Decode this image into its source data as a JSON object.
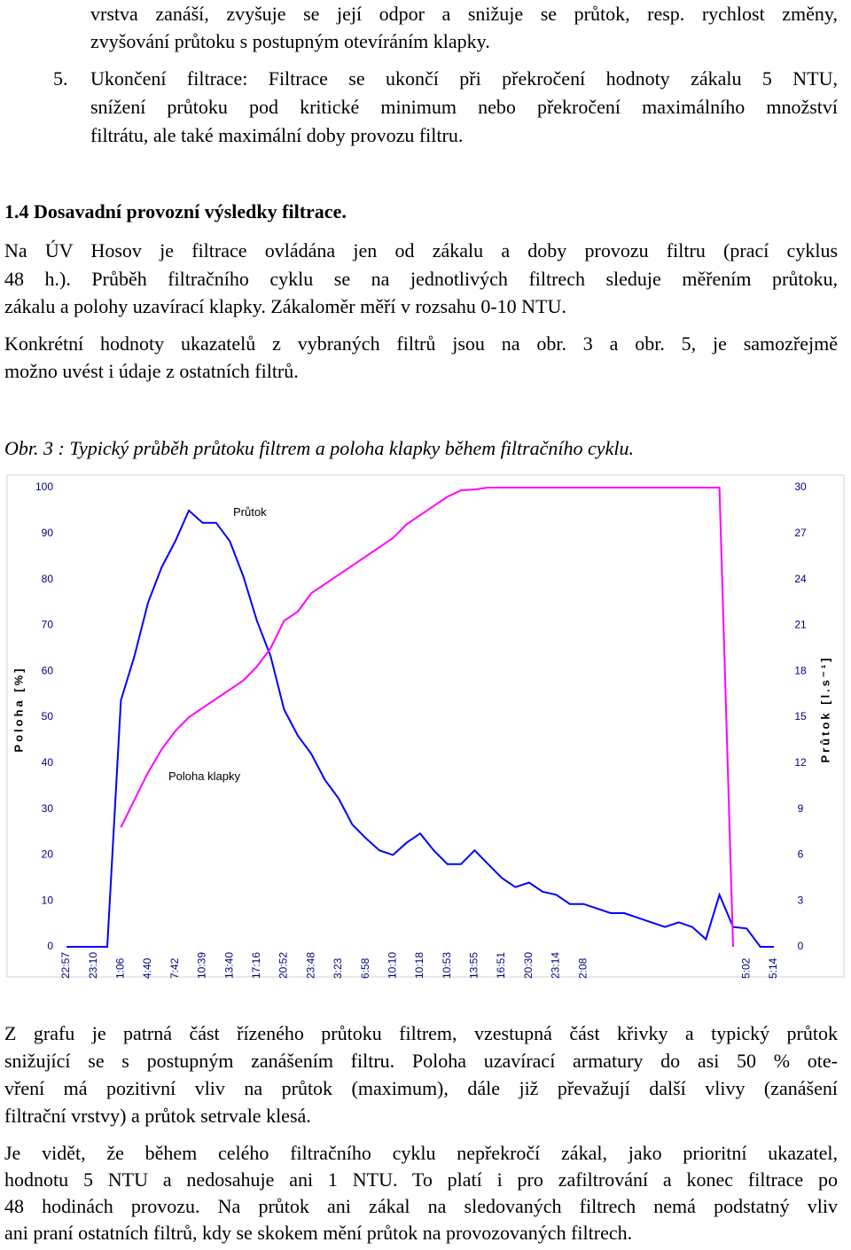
{
  "text": {
    "p1": [
      "vrstva zanáší, zvyšuje se její odpor a snižuje se průtok, resp. rychlost změny,",
      "zvyšování průtoku s postupným otevíráním klapky."
    ],
    "item5": {
      "number": "5.",
      "lines": [
        "Ukončení filtrace: Filtrace se ukončí při překročení hodnoty zákalu 5 NTU,",
        "snížení průtoku pod kritické minimum nebo překročení maximálního množství",
        "filtrátu, ale také maximální doby provozu filtru."
      ]
    },
    "heading": "1.4 Dosavadní provozní výsledky filtrace.",
    "p2": [
      "Na ÚV Hosov je filtrace ovládána jen od zákalu a doby provozu filtru (prací cyklus",
      "48 h.). Průběh filtračního cyklu se na jednotlivých filtrech sleduje měřením průtoku,",
      "zákalu a polohy uzavírací klapky. Zákaloměr měří v rozsahu 0-10 NTU."
    ],
    "p3": [
      "Konkrétní hodnoty ukazatelů z vybraných filtrů jsou na obr. 3 a obr. 5, je samozřejmě",
      "možno uvést i údaje z ostatních filtrů."
    ],
    "caption": "Obr. 3 : Typický průběh průtoku filtrem a poloha klapky během filtračního cyklu.",
    "p4": [
      "Z grafu je patrná část řízeného průtoku filtrem, vzestupná část křivky a typický průtok",
      "snižující se s postupným zanášením filtru. Poloha uzavírací armatury do asi 50 % ote-",
      "vření má pozitivní vliv na průtok (maximum), dále již převažují další vlivy (zanášení",
      "filtrační vrstvy) a průtok setrvale klesá."
    ],
    "p5": [
      "Je vidět, že během celého filtračního cyklu nepřekročí zákal, jako prioritní ukazatel,",
      "hodnotu 5 NTU a nedosahuje ani 1 NTU. To platí i pro zafiltrování a konec filtrace po",
      "48 hodinách provozu. Na průtok ani zákal na sledovaných filtrech nemá podstatný vliv",
      "ani praní ostatních filtrů, kdy se skokem mění průtok na provozovaných filtrech."
    ]
  },
  "chart_data": {
    "type": "line",
    "ylabel": "Poloha [%]",
    "y2label": "Průtok [l.s⁻¹]",
    "categories": [
      "22:57",
      null,
      "23:10",
      null,
      "1:06",
      null,
      "4:40",
      null,
      "7:42",
      null,
      "10:39",
      null,
      "13:40",
      null,
      "17:16",
      null,
      "20:52",
      null,
      "23:48",
      null,
      "3:23",
      null,
      "6:58",
      null,
      "10:10",
      null,
      "10:18",
      null,
      "10:53",
      null,
      "13:55",
      null,
      "16:51",
      null,
      "20:30",
      null,
      "23:14",
      null,
      "2:08",
      null,
      null,
      null,
      null,
      null,
      null,
      null,
      null,
      null,
      null,
      null,
      "5:02",
      null,
      "5:14"
    ],
    "ylim": [
      0,
      100
    ],
    "yticks": [
      0,
      10,
      20,
      30,
      40,
      50,
      60,
      70,
      80,
      90,
      100
    ],
    "y2lim": [
      0,
      30
    ],
    "y2ticks": [
      0,
      3,
      6,
      9,
      12,
      15,
      18,
      21,
      24,
      27,
      30
    ],
    "series": [
      {
        "name": "Průtok",
        "color": "#0000ff",
        "axis": "y2",
        "values": [
          0,
          0,
          0,
          0,
          16.1,
          19.0,
          22.5,
          24.8,
          26.5,
          28.5,
          27.7,
          27.7,
          26.5,
          24.2,
          21.3,
          19.0,
          15.5,
          13.8,
          12.6,
          10.9,
          9.7,
          8.0,
          7.1,
          6.3,
          6.0,
          6.8,
          7.4,
          6.3,
          5.4,
          5.4,
          6.3,
          5.4,
          4.5,
          3.9,
          4.2,
          3.6,
          3.4,
          2.8,
          2.8,
          2.5,
          2.2,
          2.2,
          1.9,
          1.6,
          1.3,
          1.6,
          1.3,
          0.5,
          3.4,
          1.3,
          1.2,
          0,
          0
        ]
      },
      {
        "name": "Poloha klapky",
        "color": "#ff00ff",
        "values": [
          null,
          null,
          null,
          null,
          26,
          32,
          38,
          43,
          47,
          50,
          52,
          54,
          56,
          58,
          61,
          65,
          71,
          73,
          77,
          79,
          81,
          83,
          85,
          87,
          89,
          92,
          94,
          96,
          98,
          99.4,
          99.6,
          100,
          100,
          100,
          100,
          100,
          100,
          100,
          100,
          100,
          100,
          100,
          100,
          100,
          100,
          100,
          100,
          100,
          100,
          0,
          null,
          null,
          null
        ]
      }
    ]
  }
}
